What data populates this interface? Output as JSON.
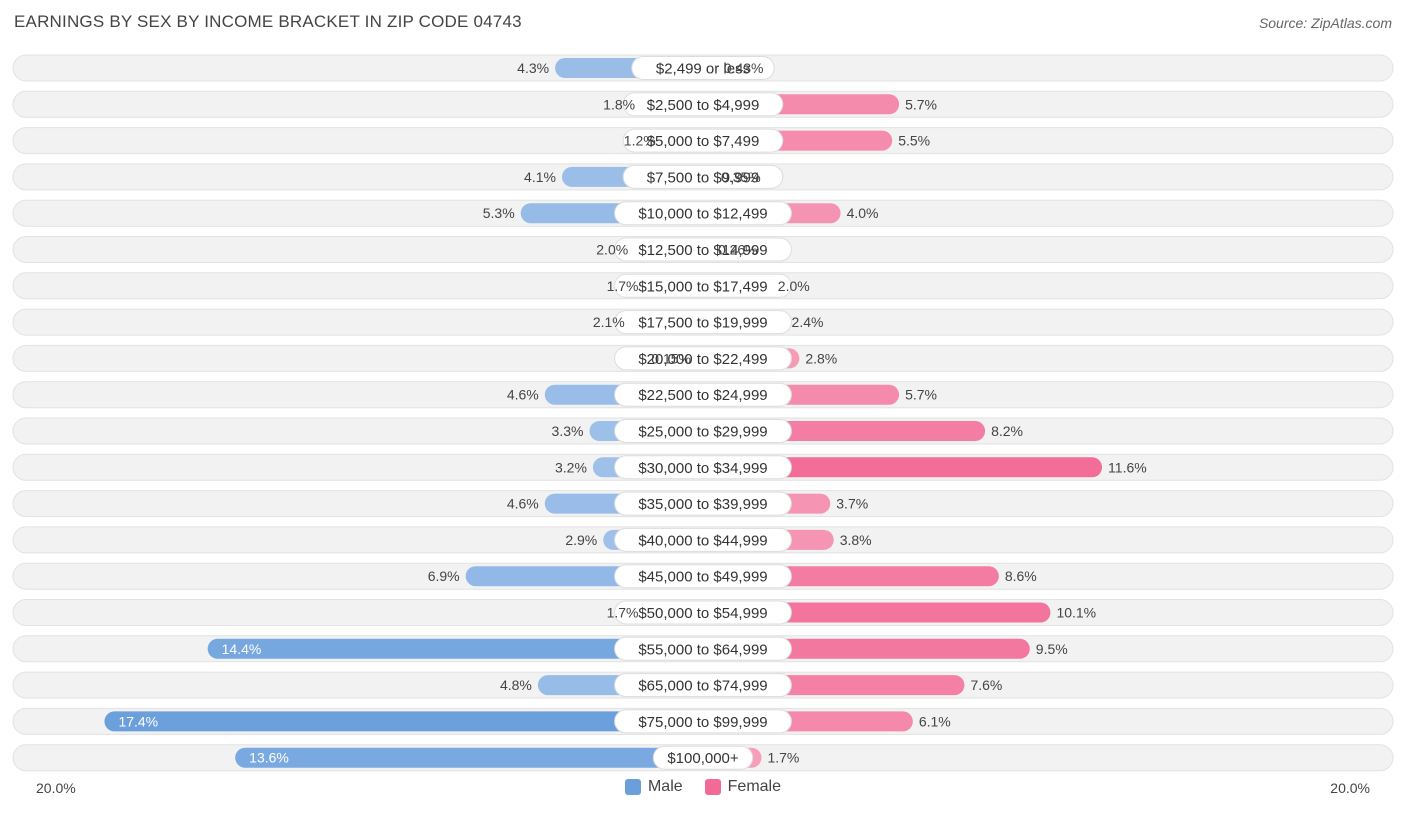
{
  "title": "EARNINGS BY SEX BY INCOME BRACKET IN ZIP CODE 04743",
  "source": "Source: ZipAtlas.com",
  "axis": {
    "left_label": "20.0%",
    "right_label": "20.0%"
  },
  "legend": [
    {
      "name": "Male",
      "color": "#6a9fdc"
    },
    {
      "name": "Female",
      "color": "#f26b96"
    }
  ],
  "colors": {
    "male_light": "#a9c7ec",
    "male_dark": "#6a9fdc",
    "female_light": "#f7a8c0",
    "female_dark": "#f26b96",
    "row_bg": "#f2f2f2"
  },
  "chart_data": {
    "type": "bar",
    "orientation": "horizontal-diverging",
    "title": "EARNINGS BY SEX BY INCOME BRACKET IN ZIP CODE 04743",
    "xlim": [
      -20,
      20
    ],
    "categories": [
      "$2,499 or less",
      "$2,500 to $4,999",
      "$5,000 to $7,499",
      "$7,500 to $9,999",
      "$10,000 to $12,499",
      "$12,500 to $14,999",
      "$15,000 to $17,499",
      "$17,500 to $19,999",
      "$20,000 to $22,499",
      "$22,500 to $24,999",
      "$25,000 to $29,999",
      "$30,000 to $34,999",
      "$35,000 to $39,999",
      "$40,000 to $44,999",
      "$45,000 to $49,999",
      "$50,000 to $54,999",
      "$55,000 to $64,999",
      "$65,000 to $74,999",
      "$75,000 to $99,999",
      "$100,000+"
    ],
    "series": [
      {
        "name": "Male",
        "values": [
          4.3,
          1.8,
          1.2,
          4.1,
          5.3,
          2.0,
          1.7,
          2.1,
          0.15,
          4.6,
          3.3,
          3.2,
          4.6,
          2.9,
          6.9,
          1.7,
          14.4,
          4.8,
          17.4,
          13.6
        ],
        "labels": [
          "4.3%",
          "1.8%",
          "1.2%",
          "4.1%",
          "5.3%",
          "2.0%",
          "1.7%",
          "2.1%",
          "0.15%",
          "4.6%",
          "3.3%",
          "3.2%",
          "4.6%",
          "2.9%",
          "6.9%",
          "1.7%",
          "14.4%",
          "4.8%",
          "17.4%",
          "13.6%"
        ]
      },
      {
        "name": "Female",
        "values": [
          0.43,
          5.7,
          5.5,
          0.35,
          4.0,
          0.26,
          2.0,
          2.4,
          2.8,
          5.7,
          8.2,
          11.6,
          3.7,
          3.8,
          8.6,
          10.1,
          9.5,
          7.6,
          6.1,
          1.7
        ],
        "labels": [
          "0.43%",
          "5.7%",
          "5.5%",
          "0.35%",
          "4.0%",
          "0.26%",
          "2.0%",
          "2.4%",
          "2.8%",
          "5.7%",
          "8.2%",
          "11.6%",
          "3.7%",
          "3.8%",
          "8.6%",
          "10.1%",
          "9.5%",
          "7.6%",
          "6.1%",
          "1.7%"
        ]
      }
    ]
  }
}
